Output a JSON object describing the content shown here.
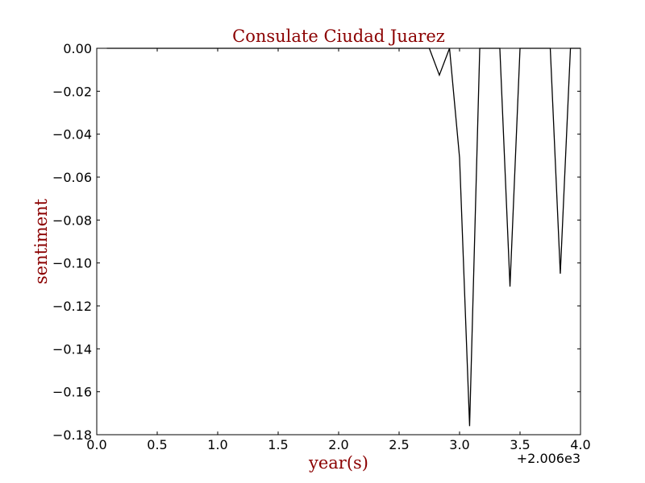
{
  "chart_data": {
    "type": "line",
    "title": "Consulate Ciudad Juarez",
    "xlabel": "year(s)",
    "ylabel": "sentiment",
    "x_offset_label": "+2.006e3",
    "xlim": [
      0.0,
      4.0
    ],
    "ylim": [
      -0.18,
      0.0
    ],
    "x_ticks": [
      {
        "value": 0.0,
        "label": "0.0"
      },
      {
        "value": 0.5,
        "label": "0.5"
      },
      {
        "value": 1.0,
        "label": "1.0"
      },
      {
        "value": 1.5,
        "label": "1.5"
      },
      {
        "value": 2.0,
        "label": "2.0"
      },
      {
        "value": 2.5,
        "label": "2.5"
      },
      {
        "value": 3.0,
        "label": "3.0"
      },
      {
        "value": 3.5,
        "label": "3.5"
      },
      {
        "value": 4.0,
        "label": "4.0"
      }
    ],
    "y_ticks": [
      {
        "value": 0.0,
        "label": "0.00"
      },
      {
        "value": -0.02,
        "label": "−0.02"
      },
      {
        "value": -0.04,
        "label": "−0.04"
      },
      {
        "value": -0.06,
        "label": "−0.06"
      },
      {
        "value": -0.08,
        "label": "−0.08"
      },
      {
        "value": -0.1,
        "label": "−0.10"
      },
      {
        "value": -0.12,
        "label": "−0.12"
      },
      {
        "value": -0.14,
        "label": "−0.14"
      },
      {
        "value": -0.16,
        "label": "−0.16"
      },
      {
        "value": -0.18,
        "label": "−0.18"
      }
    ],
    "grid": false,
    "line_color": "#000000",
    "series": [
      {
        "x": [
          0.083,
          0.167,
          0.25,
          0.333,
          0.417,
          0.5,
          0.583,
          0.667,
          0.75,
          0.833,
          0.917,
          1.0,
          1.083,
          1.167,
          1.25,
          1.333,
          1.417,
          1.5,
          1.583,
          1.667,
          1.75,
          1.833,
          1.917,
          2.0,
          2.083,
          2.167,
          2.25,
          2.333,
          2.417,
          2.5,
          2.583,
          2.667,
          2.75,
          2.833,
          2.917,
          3.0,
          3.083,
          3.167,
          3.25,
          3.333,
          3.417,
          3.5,
          3.583,
          3.667,
          3.75,
          3.833,
          3.917,
          4.0
        ],
        "y": [
          0,
          0,
          0,
          0,
          0,
          0,
          0,
          0,
          0,
          0,
          0,
          0,
          0,
          0,
          0,
          0,
          0,
          0,
          0,
          0,
          0,
          0,
          0,
          0,
          0,
          0,
          0,
          0,
          0,
          0,
          0,
          0,
          0,
          -0.0125,
          0,
          -0.051,
          -0.176,
          0,
          0,
          0,
          -0.111,
          0,
          0,
          0,
          0,
          -0.105,
          0,
          0
        ]
      }
    ]
  }
}
